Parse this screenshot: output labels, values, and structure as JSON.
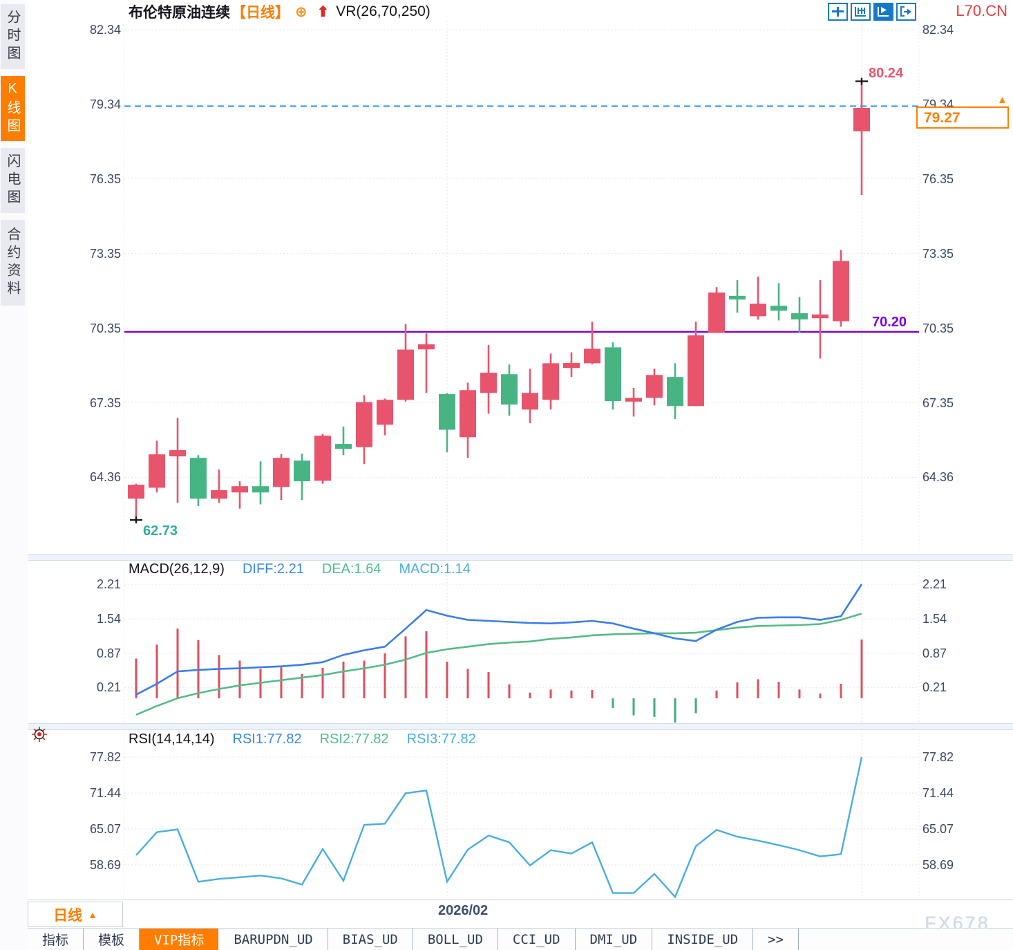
{
  "app": {
    "symbol_code": "L70.CN"
  },
  "icons": {
    "add_indicator": "⊕",
    "signal_arrow": "⬆",
    "price_marker": "▲",
    "period_caret": "▲",
    "more_tabs": ">>"
  },
  "sidebar": {
    "items": [
      {
        "label": "分时图",
        "active": false
      },
      {
        "label": "K线图",
        "active": true
      },
      {
        "label": "闪电图",
        "active": false
      },
      {
        "label": "合约资料",
        "active": false
      }
    ]
  },
  "header": {
    "title": "布伦特原油连续",
    "period_tag": "【日线】",
    "indicator_label": "VR(26,70,250)",
    "toolbar_icons": [
      "move-tool",
      "axis-range-tool",
      "auto-scale-tool",
      "pan-right-tool"
    ],
    "toolbar_active_index": 2
  },
  "price_panel": {
    "y_ticks": [
      82.34,
      79.34,
      76.35,
      73.35,
      70.35,
      67.35,
      64.36
    ],
    "high_label": "80.24",
    "low_label": "62.73",
    "support_label": "70.20",
    "current_price_label": "79.27"
  },
  "macd_panel": {
    "name": "MACD(26,12,9)",
    "diff_label": "DIFF:2.21",
    "dea_label": "DEA:1.64",
    "macd_label": "MACD:1.14",
    "y_ticks": [
      2.21,
      1.54,
      0.87,
      0.21
    ]
  },
  "rsi_panel": {
    "name": "RSI(14,14,14)",
    "rsi1_label": "RSI1:77.82",
    "rsi2_label": "RSI2:77.82",
    "rsi3_label": "RSI3:77.82",
    "y_ticks": [
      77.82,
      71.44,
      65.07,
      58.69
    ]
  },
  "bottom": {
    "date_label": "2026/02",
    "period_button": "日线",
    "watermark": "FX678",
    "tabs": [
      {
        "label": "指标",
        "active": false
      },
      {
        "label": "模板",
        "active": false
      },
      {
        "label": "VIP指标",
        "active": true
      },
      {
        "label": "BARUPDN_UD",
        "active": false
      },
      {
        "label": "BIAS_UD",
        "active": false
      },
      {
        "label": "BOLL_UD",
        "active": false
      },
      {
        "label": "CCI_UD",
        "active": false
      },
      {
        "label": "DMI_UD",
        "active": false
      },
      {
        "label": "INSIDE_UD",
        "active": false
      },
      {
        "label": ">>",
        "active": false
      }
    ]
  },
  "colors": {
    "up": "#e8546b",
    "down": "#47b583",
    "hist_up": "#de4e5e",
    "hist_down": "#3fae78",
    "diff_line": "#3a7de8",
    "dea_line": "#55bb88",
    "rsi_line": "#49ade0",
    "blue_dashed": "#1e90ff",
    "support_purple": "#7a00e6",
    "accent_orange": "#ff7d00",
    "symbol_red": "#e8393c",
    "high_label": "#e8566e",
    "low_label": "#2fae9b",
    "axis_text": "#3a4763",
    "grid": "#e4e4ea",
    "diff_text": "#3a86e8",
    "dea_text": "#4dbd8d",
    "cyan_text": "#45aee0"
  },
  "chart_data": [
    {
      "type": "candlestick",
      "title": "布伦特原油连续 日线",
      "y_ticks": [
        82.34,
        79.34,
        76.35,
        73.35,
        70.35,
        67.35,
        64.36
      ],
      "support_line": 70.2,
      "current_price": 79.27,
      "high_marker": {
        "index": 35,
        "value": 80.24
      },
      "low_marker": {
        "index": 0,
        "value": 62.73
      },
      "grid_vline_indexes": [
        15,
        35
      ],
      "candles_ohlc": [
        [
          63.5,
          64.1,
          62.73,
          64.06
        ],
        [
          63.94,
          65.83,
          63.75,
          65.28
        ],
        [
          65.2,
          66.75,
          63.33,
          65.45
        ],
        [
          65.14,
          65.25,
          63.2,
          63.5
        ],
        [
          63.5,
          64.67,
          63.33,
          63.84
        ],
        [
          63.75,
          64.2,
          63.1,
          64.0
        ],
        [
          64.0,
          65.0,
          63.27,
          63.75
        ],
        [
          63.97,
          65.3,
          63.45,
          65.14
        ],
        [
          65.03,
          65.31,
          63.45,
          64.2
        ],
        [
          64.22,
          66.1,
          64.1,
          66.03
        ],
        [
          65.7,
          66.4,
          65.25,
          65.5
        ],
        [
          65.57,
          67.66,
          64.89,
          67.38
        ],
        [
          66.47,
          67.52,
          66.05,
          67.47
        ],
        [
          67.47,
          70.52,
          67.4,
          69.49
        ],
        [
          69.5,
          70.14,
          67.75,
          69.7
        ],
        [
          67.7,
          67.75,
          65.36,
          66.27
        ],
        [
          65.97,
          68.16,
          65.14,
          67.86
        ],
        [
          67.75,
          69.67,
          66.91,
          68.56
        ],
        [
          68.5,
          68.89,
          66.83,
          67.28
        ],
        [
          67.08,
          68.72,
          66.53,
          67.75
        ],
        [
          67.47,
          69.33,
          67.08,
          68.94
        ],
        [
          68.75,
          69.38,
          68.39,
          68.95
        ],
        [
          68.94,
          70.61,
          68.9,
          69.52
        ],
        [
          69.58,
          69.78,
          67.08,
          67.42
        ],
        [
          67.4,
          67.95,
          66.8,
          67.55
        ],
        [
          67.55,
          68.72,
          67.25,
          68.47
        ],
        [
          68.39,
          68.94,
          66.7,
          67.22
        ],
        [
          67.22,
          70.61,
          67.22,
          70.06
        ],
        [
          70.16,
          72.0,
          70.16,
          71.78
        ],
        [
          71.65,
          72.28,
          70.97,
          71.5
        ],
        [
          70.83,
          72.42,
          70.69,
          71.33
        ],
        [
          71.25,
          72.16,
          70.66,
          71.05
        ],
        [
          70.95,
          71.6,
          70.16,
          70.7
        ],
        [
          70.75,
          72.28,
          69.13,
          70.9
        ],
        [
          70.63,
          73.49,
          70.41,
          73.05
        ],
        [
          78.26,
          80.24,
          75.7,
          79.2
        ]
      ]
    },
    {
      "type": "bar",
      "title": "MACD(26,12,9)",
      "values_shown": {
        "DIFF": 2.21,
        "DEA": 1.64,
        "MACD": 1.14
      },
      "y_ticks": [
        2.21,
        1.54,
        0.87,
        0.21
      ],
      "hist": [
        0.77,
        1.04,
        1.35,
        1.13,
        0.84,
        0.73,
        0.57,
        0.6,
        0.47,
        0.59,
        0.71,
        0.73,
        0.87,
        1.2,
        1.3,
        0.71,
        0.57,
        0.51,
        0.27,
        0.11,
        0.17,
        0.15,
        0.16,
        -0.19,
        -0.33,
        -0.36,
        -0.47,
        -0.29,
        0.15,
        0.31,
        0.37,
        0.32,
        0.17,
        0.09,
        0.28,
        1.14
      ],
      "diff": [
        0.07,
        0.28,
        0.52,
        0.55,
        0.57,
        0.58,
        0.6,
        0.62,
        0.65,
        0.7,
        0.84,
        0.93,
        1.0,
        1.35,
        1.71,
        1.6,
        1.52,
        1.5,
        1.48,
        1.46,
        1.45,
        1.47,
        1.5,
        1.45,
        1.35,
        1.26,
        1.16,
        1.11,
        1.33,
        1.48,
        1.56,
        1.57,
        1.57,
        1.52,
        1.59,
        2.21
      ],
      "dea": [
        -0.32,
        -0.15,
        0.0,
        0.1,
        0.18,
        0.25,
        0.3,
        0.35,
        0.4,
        0.45,
        0.52,
        0.58,
        0.65,
        0.75,
        0.88,
        0.95,
        1.0,
        1.05,
        1.08,
        1.1,
        1.15,
        1.18,
        1.22,
        1.24,
        1.25,
        1.26,
        1.26,
        1.27,
        1.32,
        1.37,
        1.4,
        1.41,
        1.42,
        1.44,
        1.52,
        1.64
      ]
    },
    {
      "type": "line",
      "title": "RSI(14,14,14)",
      "values_shown": {
        "RSI1": 77.82,
        "RSI2": 77.82,
        "RSI3": 77.82
      },
      "y_ticks": [
        77.82,
        71.44,
        65.07,
        58.69
      ],
      "rsi": [
        60.4,
        64.5,
        65.0,
        55.7,
        56.2,
        56.5,
        56.8,
        56.3,
        55.2,
        61.5,
        55.9,
        65.8,
        66.0,
        71.4,
        71.9,
        55.7,
        61.4,
        63.9,
        62.7,
        58.6,
        61.3,
        60.7,
        62.7,
        53.7,
        53.7,
        57.1,
        53.0,
        62.0,
        64.9,
        63.7,
        63.0,
        62.2,
        61.3,
        60.2,
        60.6,
        77.82
      ]
    }
  ]
}
